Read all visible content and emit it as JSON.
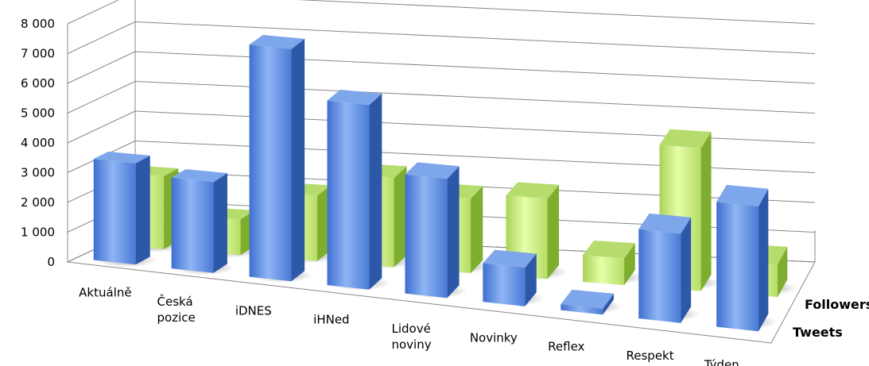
{
  "chart_data": {
    "type": "bar",
    "style": "3d-column",
    "categories": [
      "Aktuálně",
      "Česká\npozice",
      "iDNES",
      "iHNed",
      "Lidové\nnoviny",
      "Novinky",
      "Reflex",
      "Respekt",
      "Týden"
    ],
    "series": [
      {
        "name": "Tweets",
        "color": "#4f81bd",
        "values": [
          3400,
          3050,
          7800,
          6200,
          4000,
          1300,
          200,
          3000,
          4200
        ]
      },
      {
        "name": "Followers",
        "color": "#9bd04a",
        "values": [
          2450,
          1200,
          2200,
          3000,
          2500,
          2700,
          900,
          4800,
          1100
        ]
      }
    ],
    "y_ticks": [
      "0",
      "1 000",
      "2 000",
      "3 000",
      "4 000",
      "5 000",
      "6 000",
      "7 000",
      "8 000"
    ],
    "ylim": [
      0,
      8000
    ],
    "grid": true,
    "legend": "right"
  }
}
